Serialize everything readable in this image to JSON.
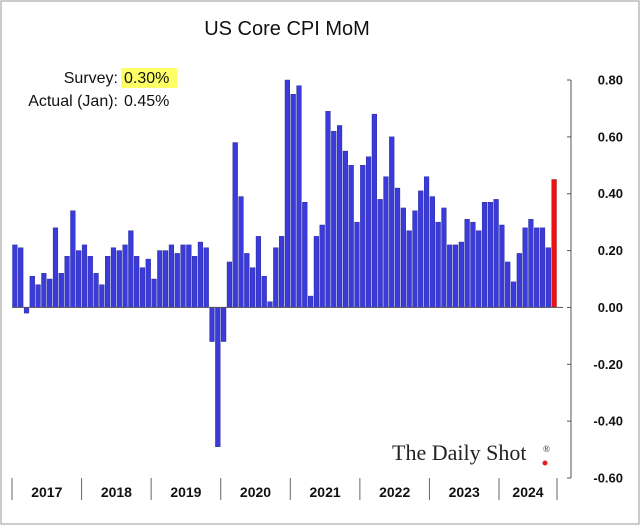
{
  "chart_data": {
    "type": "bar",
    "title": "US Core CPI MoM",
    "xlabel": "",
    "ylabel": "",
    "ylim": [
      -0.6,
      0.8
    ],
    "yticks": [
      "0.80",
      "0.60",
      "0.40",
      "0.20",
      "0.00",
      "-0.20",
      "-0.40",
      "-0.60"
    ],
    "ytick_values": [
      0.8,
      0.6,
      0.4,
      0.2,
      0.0,
      -0.2,
      -0.4,
      -0.6
    ],
    "year_labels": [
      "2017",
      "2018",
      "2019",
      "2020",
      "2021",
      "2022",
      "2023",
      "2024"
    ],
    "grid": false,
    "annotations": {
      "survey_label": "Survey:",
      "survey_value": "0.30%",
      "actual_label": "Actual (Jan):",
      "actual_value": "0.45%"
    },
    "brand": "The Daily Shot",
    "brand_mark": "®",
    "colors": {
      "bar": "#3b3bdc",
      "highlight": "#ee1111",
      "survey_highlight": "#ffff66",
      "brand_dot": "#e02020"
    },
    "series": [
      {
        "values": [
          0.22,
          0.21,
          -0.02,
          0.11,
          0.08,
          0.12,
          0.1,
          0.28,
          0.12,
          0.18,
          0.34,
          0.2,
          0.22,
          0.18,
          0.12,
          0.08,
          0.18,
          0.21,
          0.2,
          0.22,
          0.27,
          0.18,
          0.14,
          0.17,
          0.1,
          0.2,
          0.2,
          0.22,
          0.19,
          0.22,
          0.22,
          0.18,
          0.23,
          0.21,
          -0.12,
          -0.49,
          -0.12,
          0.16,
          0.58,
          0.39,
          0.19,
          0.14,
          0.25,
          0.11,
          0.02,
          0.21,
          0.25,
          0.8,
          0.75,
          0.78,
          0.37,
          0.04,
          0.25,
          0.29,
          0.69,
          0.62,
          0.64,
          0.55,
          0.5,
          0.3,
          0.5,
          0.53,
          0.68,
          0.38,
          0.46,
          0.6,
          0.42,
          0.35,
          0.27,
          0.34,
          0.41,
          0.46,
          0.39,
          0.3,
          0.35,
          0.22,
          0.22,
          0.23,
          0.31,
          0.3,
          0.27,
          0.37,
          0.37,
          0.38,
          0.29,
          0.16,
          0.09,
          0.19,
          0.28,
          0.31,
          0.28,
          0.28,
          0.21,
          0.45
        ]
      }
    ]
  }
}
